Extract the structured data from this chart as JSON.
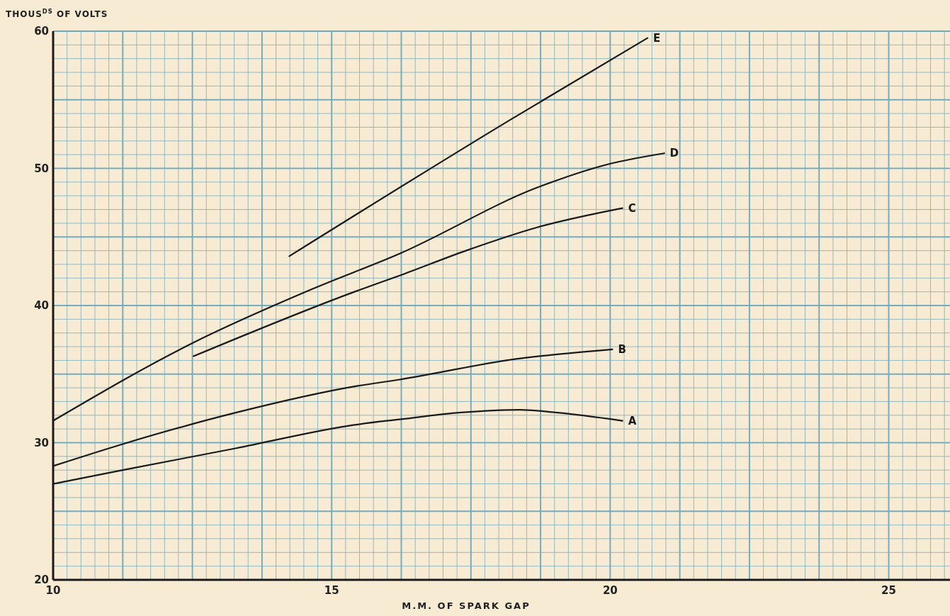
{
  "chart_data": {
    "type": "line",
    "xlabel": "M.M. OF SPARK GAP",
    "ylabel": "THOUS$^{DS}$ OF VOLTS",
    "xlim": [
      10,
      26.1
    ],
    "ylim": [
      20,
      60
    ],
    "xticks": [
      10,
      {
        "value": 10.25,
        "label": null
      },
      {
        "value": 10.5,
        "label": null
      },
      {
        "value": 10.75,
        "label": null
      },
      {
        "value": 11,
        "label": null
      },
      {
        "value": 11.25,
        "label": null
      },
      {
        "value": 11.5,
        "label": null
      },
      {
        "value": 11.75,
        "label": null
      },
      {
        "value": 12,
        "label": null
      },
      {
        "value": 12.25,
        "label": null
      },
      {
        "value": 12.5,
        "label": null
      },
      {
        "value": 12.75,
        "label": null
      },
      {
        "value": 13,
        "label": null
      },
      {
        "value": 13.25,
        "label": null
      },
      {
        "value": 13.5,
        "label": null
      },
      {
        "value": 13.75,
        "label": null
      },
      {
        "value": 14,
        "label": null
      },
      {
        "value": 14.25,
        "label": null
      },
      {
        "value": 14.5,
        "label": null
      },
      {
        "value": 14.75,
        "label": null
      },
      15,
      {
        "value": 15.25,
        "label": null
      },
      {
        "value": 15.5,
        "label": null
      },
      {
        "value": 15.75,
        "label": null
      },
      {
        "value": 16,
        "label": null
      },
      {
        "value": 16.25,
        "label": null
      },
      {
        "value": 16.5,
        "label": null
      },
      {
        "value": 16.75,
        "label": null
      },
      {
        "value": 17,
        "label": null
      },
      {
        "value": 17.25,
        "label": null
      },
      {
        "value": 17.5,
        "label": null
      },
      {
        "value": 17.75,
        "label": null
      },
      {
        "value": 18,
        "label": null
      },
      {
        "value": 18.25,
        "label": null
      },
      {
        "value": 18.5,
        "label": null
      },
      {
        "value": 18.75,
        "label": null
      },
      {
        "value": 19,
        "label": null
      },
      {
        "value": 19.25,
        "label": null
      },
      {
        "value": 19.5,
        "label": null
      },
      {
        "value": 19.75,
        "label": null
      },
      20,
      {
        "value": 20.25,
        "label": null
      },
      {
        "value": 20.5,
        "label": null
      },
      {
        "value": 20.75,
        "label": null
      },
      {
        "value": 21,
        "label": null
      },
      {
        "value": 21.25,
        "label": null
      },
      {
        "value": 21.5,
        "label": null
      },
      {
        "value": 21.75,
        "label": null
      },
      {
        "value": 22,
        "label": null
      },
      {
        "value": 22.25,
        "label": null
      },
      {
        "value": 22.5,
        "label": null
      },
      {
        "value": 22.75,
        "label": null
      },
      {
        "value": 23,
        "label": null
      },
      {
        "value": 23.25,
        "label": null
      },
      {
        "value": 23.5,
        "label": null
      },
      {
        "value": 23.75,
        "label": null
      },
      {
        "value": 24,
        "label": null
      },
      {
        "value": 24.25,
        "label": null
      },
      {
        "value": 24.5,
        "label": null
      },
      {
        "value": 24.75,
        "label": null
      },
      25,
      {
        "value": 25.25,
        "label": null
      },
      {
        "value": 25.5,
        "label": null
      },
      {
        "value": 25.75,
        "label": null
      },
      {
        "value": 26,
        "label": null
      }
    ],
    "yticks": [
      20,
      {
        "value": 21,
        "label": null
      },
      {
        "value": 22,
        "label": null
      },
      {
        "value": 23,
        "label": null
      },
      {
        "value": 24,
        "label": null
      },
      {
        "value": 25,
        "label": null
      },
      {
        "value": 26,
        "label": null
      },
      {
        "value": 27,
        "label": null
      },
      {
        "value": 28,
        "label": null
      },
      {
        "value": 29,
        "label": null
      },
      30,
      {
        "value": 31,
        "label": null
      },
      {
        "value": 32,
        "label": null
      },
      {
        "value": 33,
        "label": null
      },
      {
        "value": 34,
        "label": null
      },
      {
        "value": 35,
        "label": null
      },
      {
        "value": 36,
        "label": null
      },
      {
        "value": 37,
        "label": null
      },
      {
        "value": 38,
        "label": null
      },
      {
        "value": 39,
        "label": null
      },
      40,
      {
        "value": 41,
        "label": null
      },
      {
        "value": 42,
        "label": null
      },
      {
        "value": 43,
        "label": null
      },
      {
        "value": 44,
        "label": null
      },
      {
        "value": 45,
        "label": null
      },
      {
        "value": 46,
        "label": null
      },
      {
        "value": 47,
        "label": null
      },
      {
        "value": 48,
        "label": null
      },
      {
        "value": 49,
        "label": null
      },
      50,
      {
        "value": 51,
        "label": null
      },
      {
        "value": 52,
        "label": null
      },
      {
        "value": 53,
        "label": null
      },
      {
        "value": 54,
        "label": null
      },
      {
        "value": 55,
        "label": null
      },
      {
        "value": 56,
        "label": null
      },
      {
        "value": 57,
        "label": null
      },
      {
        "value": 58,
        "label": null
      },
      {
        "value": 59,
        "label": null
      },
      60
    ],
    "grid": true,
    "legend": false,
    "marker": "none",
    "line_style": "solid",
    "series": [
      {
        "name": "A",
        "color": "#1a1a1a",
        "x": [
          10,
          11.25,
          13.29,
          15.41,
          16.22,
          17.32,
          18.38,
          19.02,
          20.22
        ],
        "values": [
          27.0,
          28.0,
          29.6,
          31.3,
          31.7,
          32.2,
          32.4,
          32.2,
          31.6
        ]
      },
      {
        "name": "B",
        "color": "#1a1a1a",
        "x": [
          10,
          11.25,
          13.29,
          15.41,
          16.22,
          18.31,
          19.45,
          20.04
        ],
        "values": [
          28.3,
          29.9,
          32.2,
          34.1,
          34.6,
          36.1,
          36.6,
          36.8
        ]
      },
      {
        "name": "C",
        "color": "#1a1a1a",
        "x": [
          12.52,
          15.41,
          16.23,
          17.41,
          18.69,
          20.22
        ],
        "values": [
          36.3,
          41.0,
          42.2,
          44.0,
          45.7,
          47.1
        ]
      },
      {
        "name": "D",
        "color": "#1a1a1a",
        "x": [
          10,
          12.52,
          14.65,
          16.23,
          18.69,
          19.96,
          20.97
        ],
        "values": [
          31.6,
          37.3,
          41.2,
          43.8,
          48.6,
          50.3,
          51.1
        ]
      },
      {
        "name": "E",
        "color": "#1a1a1a",
        "x": [
          14.24,
          18.23,
          20.67
        ],
        "values": [
          43.6,
          53.6,
          59.5
        ]
      }
    ]
  }
}
